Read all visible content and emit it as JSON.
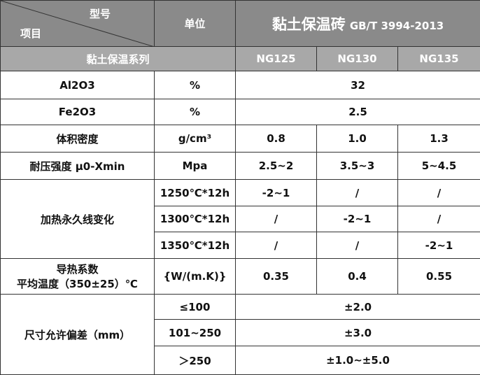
{
  "header": {
    "corner_top": "型号",
    "corner_bottom": "项目",
    "unit": "单位",
    "product": "黏土保温砖",
    "standard": "GB/T 3994-2013"
  },
  "series_row": {
    "label": "黏土保温系列",
    "models": [
      "NG125",
      "NG130",
      "NG135"
    ]
  },
  "rows": [
    {
      "item": "Al2O3",
      "unit": "%",
      "value": "32"
    },
    {
      "item": "Fe2O3",
      "unit": "%",
      "value": "2.5"
    },
    {
      "item": "体积密度",
      "unit": "g/cm³",
      "values": [
        "0.8",
        "1.0",
        "1.3"
      ]
    },
    {
      "item": "耐压强度 μ0-Xmin",
      "unit": "Mpa",
      "values": [
        "2.5~2",
        "3.5~3",
        "5~4.5"
      ]
    },
    {
      "item": "加热永久线变化",
      "sub": [
        {
          "condition": "1250℃*12h",
          "values": [
            "-2~1",
            "/",
            "/"
          ]
        },
        {
          "condition": "1300℃*12h",
          "values": [
            "/",
            "-2~1",
            "/"
          ]
        },
        {
          "condition": "1350℃*12h",
          "values": [
            "/",
            "/",
            "-2~1"
          ]
        }
      ]
    },
    {
      "item": [
        "导热系数",
        "平均温度（350±25）℃"
      ],
      "unit": "{W/(m.K)}",
      "values": [
        "0.35",
        "0.4",
        "0.55"
      ]
    },
    {
      "item": "尺寸允许偏差（mm）",
      "sub": [
        {
          "condition": "≤100",
          "value": "±2.0"
        },
        {
          "condition": "101~250",
          "value": "±3.0"
        },
        {
          "condition": "＞250",
          "value": "±1.0~±5.0"
        }
      ]
    }
  ]
}
